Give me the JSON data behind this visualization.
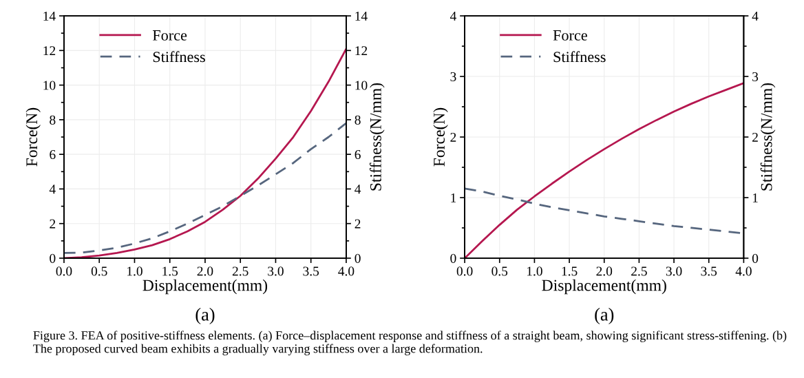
{
  "chart_data": [
    {
      "type": "line",
      "xlabel": "Displacement(mm)",
      "ylabel": "Force(N)",
      "y2label": "Stiffness(N/mm)",
      "x": [
        0,
        0.25,
        0.5,
        0.75,
        1.0,
        1.25,
        1.5,
        1.75,
        2.0,
        2.25,
        2.5,
        2.75,
        3.0,
        3.25,
        3.5,
        3.75,
        4.0
      ],
      "series": [
        {
          "name": "Force",
          "color": "#b5174f",
          "line_style": "solid",
          "values": [
            0,
            0.05,
            0.15,
            0.3,
            0.5,
            0.75,
            1.1,
            1.55,
            2.1,
            2.8,
            3.6,
            4.6,
            5.75,
            7.0,
            8.5,
            10.2,
            12.1
          ]
        },
        {
          "name": "Stiffness",
          "color": "#56667e",
          "line_style": "dashed",
          "axis": "y2",
          "values": [
            0.3,
            0.32,
            0.45,
            0.6,
            0.85,
            1.15,
            1.55,
            2.0,
            2.5,
            3.0,
            3.6,
            4.2,
            4.85,
            5.5,
            6.3,
            7.0,
            7.8
          ]
        }
      ],
      "xlim": [
        0,
        4
      ],
      "xticks": [
        {
          "value": 0,
          "label": "0.0"
        },
        0.5,
        {
          "value": 1,
          "label": "1.0"
        },
        1.5,
        {
          "value": 2,
          "label": "2.0"
        },
        2.5,
        {
          "value": 3,
          "label": "3.0"
        },
        3.5,
        {
          "value": 4,
          "label": "4.0"
        }
      ],
      "ylim": [
        0,
        14
      ],
      "yticks": [
        0,
        2,
        4,
        6,
        8,
        10,
        12,
        14
      ],
      "y2lim": [
        0,
        14
      ],
      "y2ticks": [
        0,
        2,
        4,
        6,
        8,
        10,
        12,
        14
      ],
      "legend": "top left",
      "grid": true,
      "annotations": [
        "(a)",
        "Figure 3. FEA of positive-stiffness elements. (a) Force–displacement response and stiffness of a straight beam, showing significant stress-stiffening. (b) The proposed curved beam exhibits a gradually varying stiffness over a large deformation."
      ]
    },
    {
      "type": "line",
      "xlabel": "Displacement(mm)",
      "ylabel": "Force(N)",
      "y2label": "Stiffness(N/mm)",
      "x": [
        0,
        0.25,
        0.5,
        0.75,
        1.0,
        1.25,
        1.5,
        1.75,
        2.0,
        2.25,
        2.5,
        2.75,
        3.0,
        3.25,
        3.5,
        3.75,
        4.0
      ],
      "series": [
        {
          "name": "Force",
          "color": "#b5174f",
          "line_style": "solid",
          "values": [
            0,
            0.28,
            0.55,
            0.8,
            1.02,
            1.23,
            1.43,
            1.62,
            1.8,
            1.97,
            2.13,
            2.28,
            2.42,
            2.55,
            2.67,
            2.78,
            2.89
          ]
        },
        {
          "name": "Stiffness",
          "color": "#56667e",
          "line_style": "dashed",
          "axis": "y2",
          "values": [
            1.15,
            1.1,
            1.03,
            0.97,
            0.9,
            0.84,
            0.79,
            0.74,
            0.69,
            0.65,
            0.61,
            0.57,
            0.53,
            0.5,
            0.47,
            0.44,
            0.41
          ]
        }
      ],
      "xlim": [
        0,
        4
      ],
      "xticks": [
        {
          "value": 0,
          "label": "0.0"
        },
        0.5,
        {
          "value": 1,
          "label": "1.0"
        },
        1.5,
        {
          "value": 2,
          "label": "2.0"
        },
        2.5,
        {
          "value": 3,
          "label": "3.0"
        },
        3.5,
        {
          "value": 4,
          "label": "4.0"
        }
      ],
      "ylim": [
        0,
        4
      ],
      "yticks": [
        0,
        1,
        2,
        3,
        4
      ],
      "y2lim": [
        0,
        4
      ],
      "y2ticks": [
        0,
        1,
        2,
        3,
        4
      ],
      "legend": "top left",
      "grid": true,
      "annotations": [
        "(a)"
      ]
    }
  ]
}
